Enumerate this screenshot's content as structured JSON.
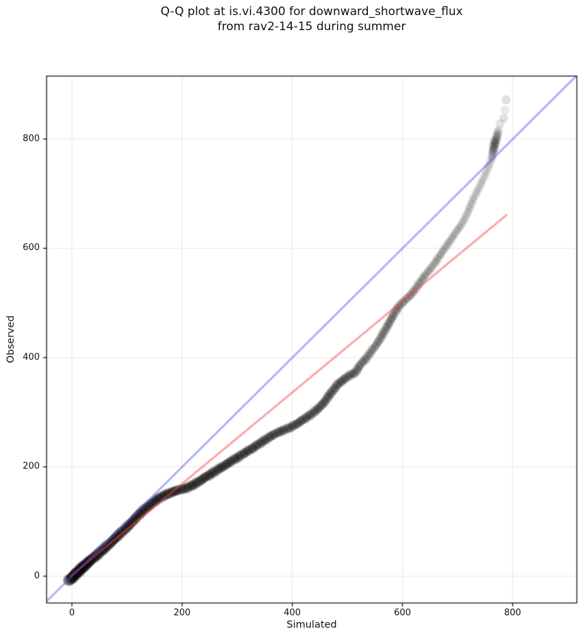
{
  "title": {
    "line1": "Q-Q plot at is.vi.4300 for downward_shortwave_flux",
    "line2": "from rav2-14-15 during summer"
  },
  "chart_data": {
    "type": "scatter",
    "title": "Q-Q plot at is.vi.4300 for downward_shortwave_flux from rav2-14-15 during summer",
    "xlabel": "Simulated",
    "ylabel": "Observed",
    "xlim": [
      -46,
      916.5
    ],
    "ylim": [
      -49,
      915.3
    ],
    "x_ticks": [
      0,
      200,
      400,
      600,
      800
    ],
    "y_ticks": [
      0,
      200,
      400,
      600,
      800
    ],
    "grid": true,
    "legend": "none",
    "colors": {
      "identity_line": "rgba(80,80,245,0.45)",
      "fit_line": "rgba(250,70,70,0.48)",
      "points": "#000000",
      "gridline": "#ececec",
      "spine": "#000000",
      "text": "#111111",
      "background": "#ffffff"
    },
    "series": [
      {
        "name": "identity_line",
        "type": "line",
        "points": [
          [
            -46,
            -46
          ],
          [
            916,
            916
          ]
        ],
        "width": 3
      },
      {
        "name": "fit_line",
        "type": "line",
        "points": [
          [
            -4,
            -1
          ],
          [
            790,
            662
          ]
        ],
        "width": 3
      },
      {
        "name": "qq_quantiles",
        "type": "scatter",
        "marker_radius": 6.5,
        "note": "points_xyd = [x, y, density] where density scales overlap darkness of translucent black markers",
        "points_xyd": [
          [
            -5,
            -8,
            3.2
          ],
          [
            0,
            -3,
            3.2
          ],
          [
            6,
            3,
            3.2
          ],
          [
            12,
            9,
            3.2
          ],
          [
            18,
            15,
            3.1
          ],
          [
            25,
            21,
            3.0
          ],
          [
            32,
            28,
            2.8
          ],
          [
            40,
            34,
            2.6
          ],
          [
            50,
            43,
            2.5
          ],
          [
            60,
            52,
            2.4
          ],
          [
            72,
            63,
            2.3
          ],
          [
            84,
            75,
            2.3
          ],
          [
            96,
            86,
            2.2
          ],
          [
            108,
            98,
            2.2
          ],
          [
            120,
            111,
            2.1
          ],
          [
            130,
            121,
            2.1
          ],
          [
            140,
            129,
            2.0
          ],
          [
            150,
            137,
            2.0
          ],
          [
            160,
            144,
            2.0
          ],
          [
            170,
            149,
            2.0
          ],
          [
            180,
            153,
            1.95
          ],
          [
            190,
            157,
            1.95
          ],
          [
            200,
            159,
            1.9
          ],
          [
            210,
            162,
            1.9
          ],
          [
            220,
            167,
            1.9
          ],
          [
            230,
            173,
            1.9
          ],
          [
            242,
            181,
            1.85
          ],
          [
            254,
            188,
            1.85
          ],
          [
            266,
            196,
            1.8
          ],
          [
            278,
            203,
            1.8
          ],
          [
            290,
            211,
            1.75
          ],
          [
            302,
            218,
            1.75
          ],
          [
            314,
            226,
            1.7
          ],
          [
            326,
            233,
            1.7
          ],
          [
            338,
            241,
            1.65
          ],
          [
            350,
            249,
            1.6
          ],
          [
            362,
            257,
            1.6
          ],
          [
            374,
            263,
            1.55
          ],
          [
            386,
            268,
            1.55
          ],
          [
            398,
            273,
            1.5
          ],
          [
            410,
            280,
            1.5
          ],
          [
            422,
            288,
            1.5
          ],
          [
            434,
            296,
            1.45
          ],
          [
            446,
            306,
            1.45
          ],
          [
            458,
            318,
            1.4
          ],
          [
            466,
            330,
            1.4
          ],
          [
            474,
            340,
            1.4
          ],
          [
            483,
            352,
            1.4
          ],
          [
            494,
            360,
            1.35
          ],
          [
            504,
            368,
            1.3
          ],
          [
            514,
            372,
            1.25
          ],
          [
            524,
            388,
            1.1
          ],
          [
            534,
            398,
            1.05
          ],
          [
            542,
            410,
            0.95
          ],
          [
            550,
            420,
            0.95
          ],
          [
            558,
            432,
            1.0
          ],
          [
            566,
            446,
            1.05
          ],
          [
            574,
            460,
            1.05
          ],
          [
            582,
            475,
            1.05
          ],
          [
            590,
            489,
            1.0
          ],
          [
            598,
            499,
            0.95
          ],
          [
            608,
            508,
            0.9
          ],
          [
            618,
            518,
            0.9
          ],
          [
            628,
            532,
            0.8
          ],
          [
            638,
            547,
            0.75
          ],
          [
            648,
            559,
            0.72
          ],
          [
            658,
            572,
            0.7
          ],
          [
            668,
            587,
            0.65
          ],
          [
            678,
            602,
            0.62
          ],
          [
            688,
            616,
            0.6
          ],
          [
            698,
            631,
            0.58
          ],
          [
            706,
            642,
            0.55
          ],
          [
            714,
            656,
            0.5
          ],
          [
            721,
            672,
            0.5
          ],
          [
            728,
            689,
            0.48
          ],
          [
            735,
            703,
            0.46
          ],
          [
            742,
            717,
            0.45
          ],
          [
            748,
            730,
            0.42
          ],
          [
            754,
            744,
            0.4
          ],
          [
            758,
            754,
            0.38
          ],
          [
            762,
            763,
            0.5
          ],
          [
            766,
            786,
            1.3
          ],
          [
            769,
            797,
            1.3
          ],
          [
            772,
            807,
            0.9
          ],
          [
            775,
            820,
            0.45
          ]
        ],
        "faint_points_xya": [
          [
            777,
            828,
            0.1
          ],
          [
            784,
            838,
            0.12
          ],
          [
            786,
            853,
            0.09
          ],
          [
            788,
            872,
            0.13
          ]
        ]
      }
    ]
  }
}
